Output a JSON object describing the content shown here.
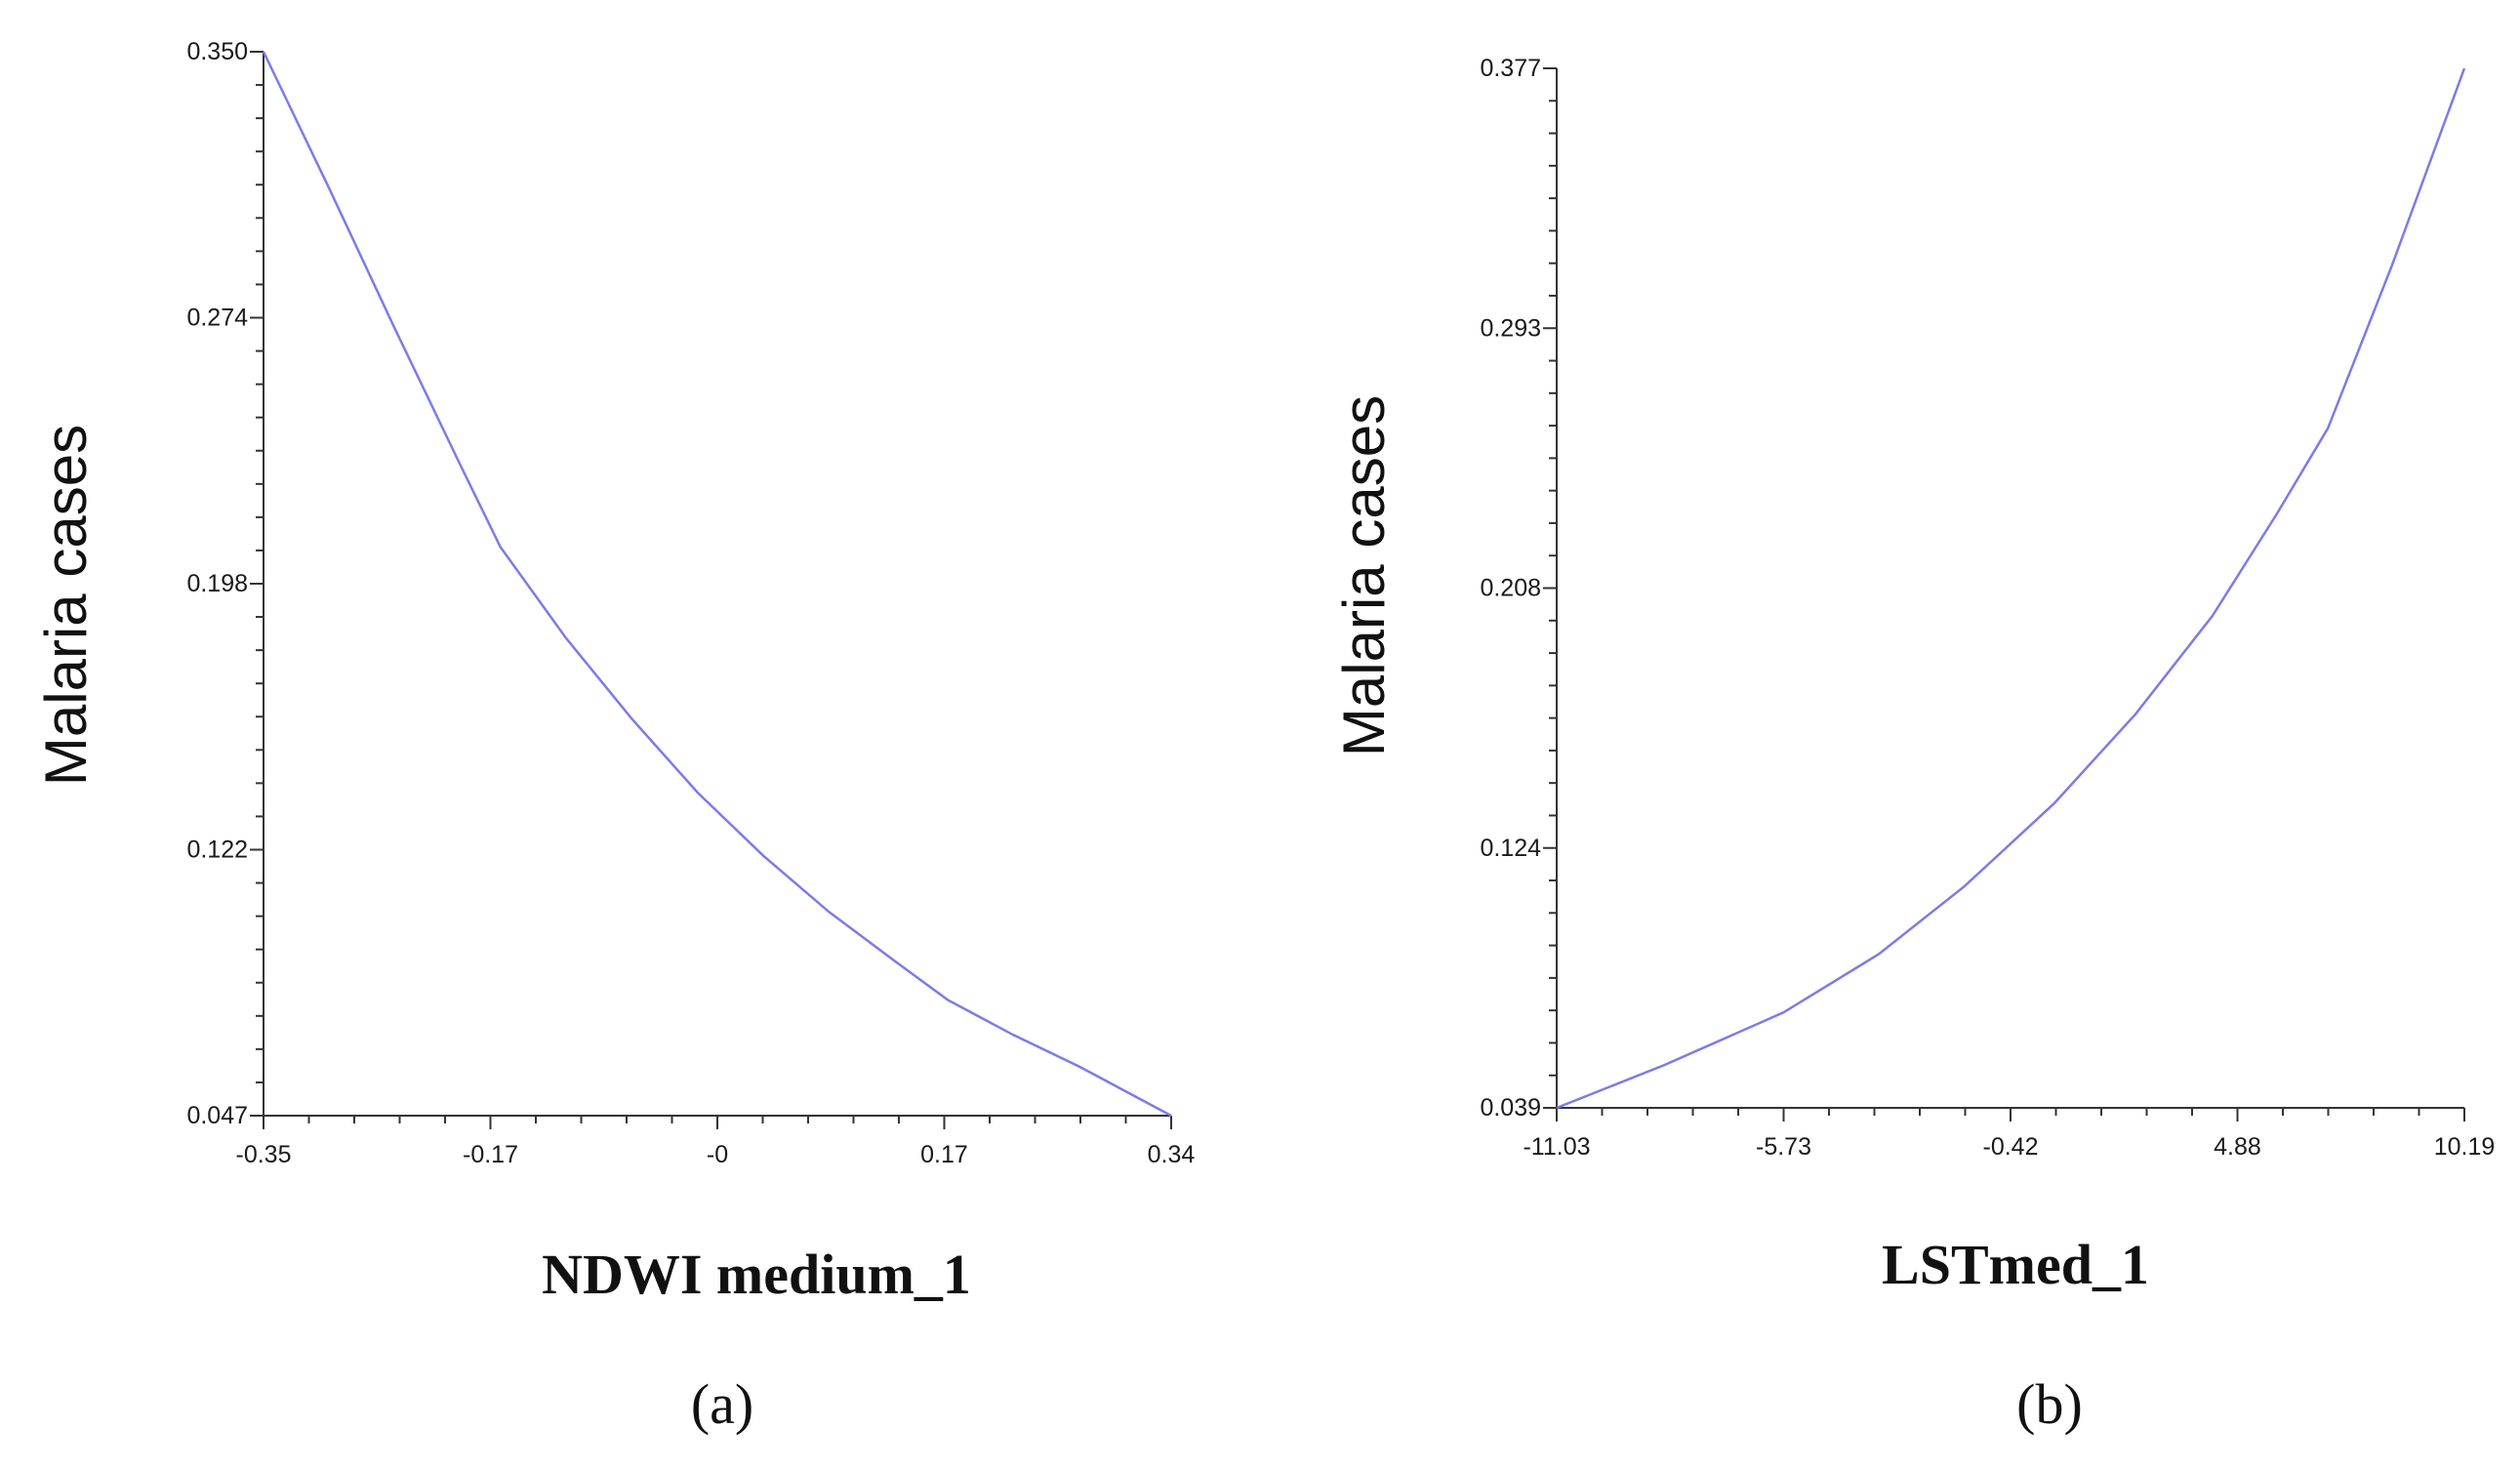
{
  "colors": {
    "curve": "#7b7bea",
    "axis": "#333333"
  },
  "chart_data": [
    {
      "type": "line",
      "panel_label": "(a)",
      "xlabel": "NDWI medium_1",
      "ylabel": "Malaria cases",
      "xlim": [
        -0.35,
        0.34
      ],
      "ylim": [
        0.047,
        0.35
      ],
      "x_ticks": [
        "-0.35",
        "-0.17",
        "-0",
        "0.17",
        "0.34"
      ],
      "y_ticks": [
        "0.047",
        "0.122",
        "0.198",
        "0.274",
        "0.350"
      ],
      "grid": false,
      "series": [
        {
          "x": [
            -0.35,
            -0.3,
            -0.25,
            -0.2,
            -0.17,
            -0.12,
            -0.07,
            -0.02,
            0.03,
            0.08,
            0.13,
            0.17,
            0.22,
            0.27,
            0.34
          ],
          "y": [
            0.35,
            0.311,
            0.271,
            0.232,
            0.209,
            0.183,
            0.16,
            0.139,
            0.121,
            0.105,
            0.091,
            0.08,
            0.07,
            0.061,
            0.047
          ]
        }
      ]
    },
    {
      "type": "line",
      "panel_label": "(b)",
      "xlabel": "LSTmed_1",
      "ylabel": "Malaria cases",
      "xlim": [
        -11.03,
        10.19
      ],
      "ylim": [
        0.039,
        0.377
      ],
      "x_ticks": [
        "-11.03",
        "-5.73",
        "-0.42",
        "4.88",
        "10.19"
      ],
      "y_ticks": [
        "0.039",
        "0.124",
        "0.208",
        "0.293",
        "0.377"
      ],
      "grid": false,
      "series": [
        {
          "x": [
            -11.03,
            -8.5,
            -5.73,
            -3.5,
            -1.5,
            0.6,
            2.5,
            4.3,
            5.8,
            7.0,
            8.5,
            10.19
          ],
          "y": [
            0.039,
            0.053,
            0.07,
            0.089,
            0.111,
            0.138,
            0.167,
            0.199,
            0.232,
            0.26,
            0.313,
            0.377
          ]
        }
      ]
    }
  ]
}
